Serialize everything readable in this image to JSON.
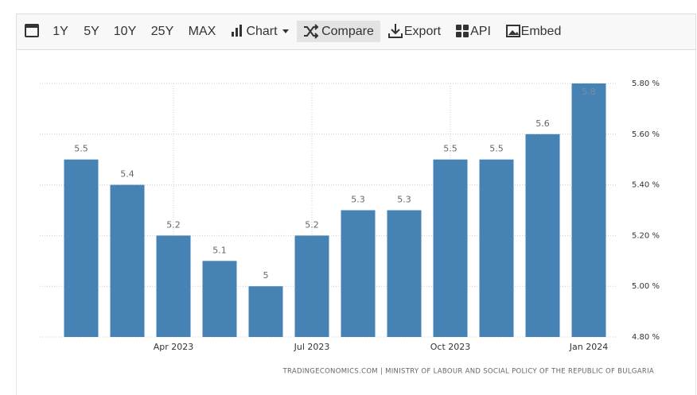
{
  "toolbar": {
    "items": [
      "1Y",
      "5Y",
      "10Y",
      "25Y",
      "MAX",
      "Chart",
      "Compare",
      "Export",
      "API",
      "Embed"
    ]
  },
  "chart_data": {
    "type": "bar",
    "categories": [
      null,
      null,
      "Apr 2023",
      null,
      null,
      "Jul 2023",
      null,
      null,
      "Oct 2023",
      null,
      null,
      "Jan 2024"
    ],
    "values": [
      5.5,
      5.4,
      5.2,
      5.1,
      5,
      5.2,
      5.3,
      5.3,
      5.5,
      5.5,
      5.6,
      5.8
    ],
    "color": "#4682b4",
    "ylim": [
      4.8,
      5.8
    ],
    "yticks": [
      {
        "value": 4.8,
        "label": "4.80 %"
      },
      {
        "value": 5.0,
        "label": "5.00 %"
      },
      {
        "value": 5.2,
        "label": "5.20 %"
      },
      {
        "value": 5.4,
        "label": "5.40 %"
      },
      {
        "value": 5.6,
        "label": "5.60 %"
      },
      {
        "value": 5.8,
        "label": "5.80 %"
      }
    ],
    "grid": true,
    "source": "TRADINGECONOMICS.COM | MINISTRY OF LABOUR AND SOCIAL POLICY OF THE REPUBLIC OF BULGARIA"
  }
}
